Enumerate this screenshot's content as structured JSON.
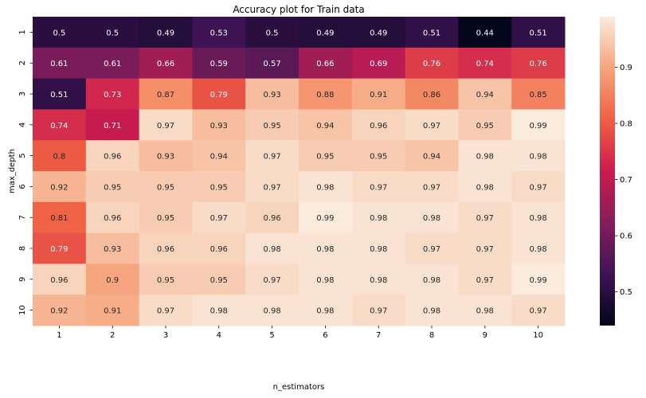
{
  "chart_data": {
    "type": "heatmap",
    "title": "Accuracy plot for Train data",
    "xlabel": "n_estimators",
    "ylabel": "max_depth",
    "x_categories": [
      "1",
      "2",
      "3",
      "4",
      "5",
      "6",
      "7",
      "8",
      "9",
      "10"
    ],
    "y_categories": [
      "1",
      "2",
      "3",
      "4",
      "5",
      "6",
      "7",
      "8",
      "9",
      "10"
    ],
    "values": [
      [
        "0.5",
        "0.5",
        "0.49",
        "0.53",
        "0.5",
        "0.49",
        "0.49",
        "0.51",
        "0.44",
        "0.51"
      ],
      [
        "0.61",
        "0.61",
        "0.66",
        "0.59",
        "0.57",
        "0.66",
        "0.69",
        "0.76",
        "0.74",
        "0.76"
      ],
      [
        "0.51",
        "0.73",
        "0.87",
        "0.79",
        "0.93",
        "0.88",
        "0.91",
        "0.86",
        "0.94",
        "0.85"
      ],
      [
        "0.74",
        "0.71",
        "0.97",
        "0.93",
        "0.95",
        "0.94",
        "0.96",
        "0.97",
        "0.95",
        "0.99"
      ],
      [
        "0.8",
        "0.96",
        "0.93",
        "0.94",
        "0.97",
        "0.95",
        "0.95",
        "0.94",
        "0.98",
        "0.98"
      ],
      [
        "0.92",
        "0.95",
        "0.95",
        "0.95",
        "0.97",
        "0.98",
        "0.97",
        "0.97",
        "0.98",
        "0.97"
      ],
      [
        "0.81",
        "0.96",
        "0.95",
        "0.97",
        "0.96",
        "0.99",
        "0.98",
        "0.98",
        "0.97",
        "0.98"
      ],
      [
        "0.79",
        "0.93",
        "0.96",
        "0.96",
        "0.98",
        "0.98",
        "0.98",
        "0.97",
        "0.97",
        "0.98"
      ],
      [
        "0.96",
        "0.9",
        "0.95",
        "0.95",
        "0.97",
        "0.98",
        "0.98",
        "0.98",
        "0.97",
        "0.99"
      ],
      [
        "0.92",
        "0.91",
        "0.97",
        "0.98",
        "0.98",
        "0.98",
        "0.97",
        "0.98",
        "0.98",
        "0.97"
      ]
    ],
    "colorbar": {
      "min": 0.44,
      "max": 0.99,
      "ticks": [
        "0.5",
        "0.6",
        "0.7",
        "0.8",
        "0.9"
      ]
    },
    "colormap_stops": [
      "#03051a",
      "#3e1354",
      "#841e5a",
      "#cb1b4f",
      "#f06043",
      "#f6a47c",
      "#faebdd"
    ],
    "grid": false,
    "legend": "colorbar-right"
  }
}
